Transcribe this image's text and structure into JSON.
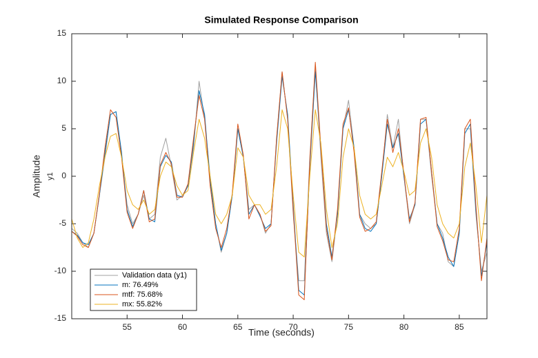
{
  "chart_data": {
    "type": "line",
    "title": "Simulated Response Comparison",
    "xlabel": "Time (seconds)",
    "ylabel": "Amplitude",
    "ylabel_channel": "y1",
    "x": [
      50,
      50.5,
      51,
      51.5,
      52,
      52.5,
      53,
      53.5,
      54,
      54.5,
      55,
      55.5,
      56,
      56.5,
      57,
      57.5,
      58,
      58.5,
      59,
      59.5,
      60,
      60.5,
      61,
      61.5,
      62,
      62.5,
      63,
      63.5,
      64,
      64.5,
      65,
      65.5,
      66,
      66.5,
      67,
      67.5,
      68,
      68.5,
      69,
      69.5,
      70,
      70.5,
      71,
      71.5,
      72,
      72.5,
      73,
      73.5,
      74,
      74.5,
      75,
      75.5,
      76,
      76.5,
      77,
      77.5,
      78,
      78.5,
      79,
      79.5,
      80,
      80.5,
      81,
      81.5,
      82,
      82.5,
      83,
      83.5,
      84,
      84.5,
      85,
      85.5,
      86,
      86.5,
      87,
      87.5
    ],
    "series": [
      {
        "name": "Validation data (y1)",
        "color": "#a0a0a0",
        "values": [
          -5.5,
          -6,
          -7,
          -7.5,
          -6,
          -2,
          2,
          6.5,
          6.8,
          2,
          -3,
          -5,
          -4,
          -2,
          -4.5,
          -4,
          2,
          4,
          1,
          -2.5,
          -2,
          -1,
          3,
          10,
          6,
          0,
          -5,
          -8,
          -6,
          -2,
          5,
          2,
          -3.5,
          -3,
          -4,
          -6,
          -5,
          4,
          11,
          6,
          -4,
          -11,
          -11,
          2,
          11.5,
          2,
          -6,
          -9,
          -4,
          5,
          8,
          3,
          -4,
          -5,
          -5.5,
          -5,
          0,
          6.5,
          3,
          6,
          0,
          -5,
          -3,
          6,
          6,
          0,
          -5,
          -6,
          -9,
          -9.5,
          -6,
          5,
          5,
          -4,
          -10,
          -8
        ]
      },
      {
        "name": "m: 76.49%",
        "color": "#0072bd",
        "values": [
          -5.8,
          -6.2,
          -7,
          -7.2,
          -6,
          -2,
          2.5,
          6.5,
          6.8,
          2.5,
          -3.5,
          -5.3,
          -4,
          -1.5,
          -4.5,
          -4.8,
          1,
          2.2,
          1.5,
          -2,
          -2.2,
          -1,
          3.5,
          9,
          6.5,
          -0.5,
          -5,
          -7.8,
          -6,
          -2,
          5,
          2,
          -4,
          -3,
          -4.2,
          -5.5,
          -5,
          3.5,
          10.5,
          6.5,
          -3,
          -12,
          -12.5,
          1,
          11,
          3,
          -5,
          -8.5,
          -4,
          5,
          7,
          3,
          -4,
          -5.5,
          -5.8,
          -5,
          0,
          5.5,
          3,
          4.5,
          0,
          -4.5,
          -3,
          5.5,
          6,
          0.5,
          -5,
          -6.5,
          -8.5,
          -9.5,
          -6,
          4.5,
          5.5,
          -3.5,
          -10.5,
          -7
        ]
      },
      {
        "name": "mtf: 75.68%",
        "color": "#d95319",
        "values": [
          -5.8,
          -6.3,
          -7.2,
          -7.5,
          -6,
          -1.8,
          3,
          7,
          6.2,
          2,
          -3.8,
          -5.5,
          -4,
          -1.5,
          -4.8,
          -4.5,
          1.2,
          2.5,
          1.3,
          -2.2,
          -2.2,
          -0.8,
          4,
          8.5,
          6,
          -1,
          -5.5,
          -7.5,
          -5.5,
          -1.8,
          5.5,
          2.2,
          -4.5,
          -3,
          -4,
          -5.8,
          -5.2,
          4,
          11,
          6,
          -3.5,
          -12.5,
          -13,
          1.5,
          12,
          3,
          -5.5,
          -8.8,
          -3.5,
          5.5,
          7.2,
          2.5,
          -4.3,
          -5.8,
          -5.5,
          -4.8,
          0.5,
          6,
          2.5,
          5,
          0.3,
          -4.8,
          -2.8,
          6,
          6.2,
          0.5,
          -5.3,
          -6.8,
          -8.8,
          -9,
          -5.5,
          5,
          6,
          -3,
          -11,
          -6.5
        ]
      },
      {
        "name": "mx: 55.82%",
        "color": "#edb120",
        "values": [
          -4.5,
          -6.5,
          -7.5,
          -7,
          -4.5,
          -1,
          2,
          4.2,
          4.5,
          2,
          -1.5,
          -3,
          -3.5,
          -2.5,
          -4,
          -3.5,
          0,
          1.5,
          1,
          -1,
          -2,
          -1.5,
          2.5,
          6,
          4,
          0,
          -4,
          -5,
          -4,
          -2,
          3,
          2,
          -2,
          -3,
          -3,
          -4,
          -3.5,
          1,
          7,
          5,
          -2,
          -8,
          -8.5,
          0,
          7,
          3.5,
          -3.5,
          -7.5,
          -5,
          2,
          5,
          3,
          -2,
          -4,
          -4.5,
          -4,
          -1,
          2,
          1,
          2.5,
          0.5,
          -2,
          -1.5,
          3.5,
          5,
          2,
          -3,
          -5,
          -6,
          -6.5,
          -5,
          1,
          3.5,
          -1,
          -7,
          -2
        ]
      }
    ],
    "xlim": [
      50,
      87.5
    ],
    "ylim": [
      -15,
      15
    ],
    "xticks": [
      55,
      60,
      65,
      70,
      75,
      80,
      85
    ],
    "yticks": [
      -15,
      -10,
      -5,
      0,
      5,
      10,
      15
    ],
    "grid": false,
    "legend": "southwest"
  }
}
